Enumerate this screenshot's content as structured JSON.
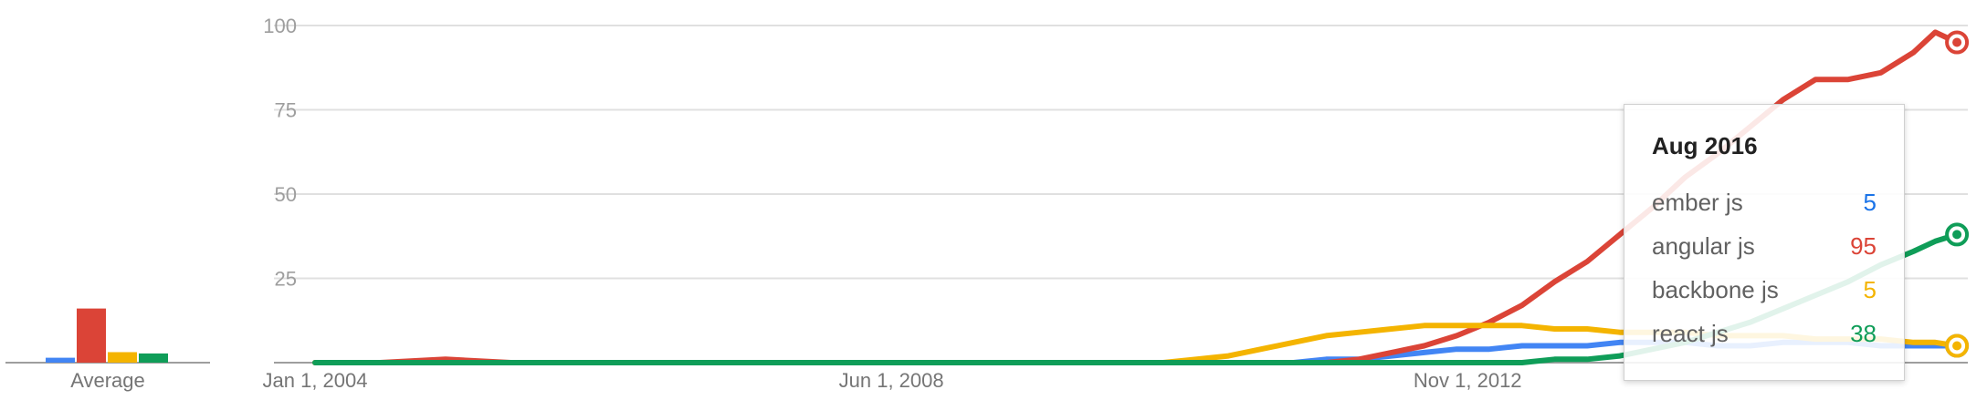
{
  "chart_data": {
    "type": "line",
    "ylim": [
      0,
      100
    ],
    "yticks": [
      100,
      75,
      50,
      25
    ],
    "xlim": [
      "2004-01",
      "2016-09"
    ],
    "xticks": [
      {
        "label": "Jan 1, 2004",
        "date": "2004-01"
      },
      {
        "label": "Jun 1, 2008",
        "date": "2008-06"
      },
      {
        "label": "Nov 1, 2012",
        "date": "2012-11"
      }
    ],
    "grid": true,
    "x": [
      "2004-01",
      "2004-07",
      "2005-01",
      "2005-07",
      "2006-01",
      "2006-07",
      "2007-01",
      "2007-07",
      "2008-01",
      "2008-07",
      "2009-01",
      "2009-07",
      "2010-01",
      "2010-04",
      "2010-07",
      "2010-10",
      "2011-01",
      "2011-04",
      "2011-07",
      "2011-10",
      "2012-01",
      "2012-04",
      "2012-07",
      "2012-10",
      "2013-01",
      "2013-04",
      "2013-07",
      "2013-10",
      "2014-01",
      "2014-04",
      "2014-07",
      "2014-10",
      "2015-01",
      "2015-04",
      "2015-07",
      "2015-10",
      "2016-01",
      "2016-04",
      "2016-06",
      "2016-08"
    ],
    "series": [
      {
        "name": "ember js",
        "color": "#4285f4",
        "values": [
          0,
          0,
          0,
          0,
          0,
          0,
          0,
          0,
          0,
          0,
          0,
          0,
          0,
          0,
          0,
          0,
          0,
          0,
          0,
          1,
          1,
          2,
          3,
          4,
          4,
          5,
          5,
          5,
          6,
          6,
          6,
          5,
          5,
          6,
          6,
          6,
          5,
          5,
          5,
          5
        ]
      },
      {
        "name": "angular js",
        "color": "#db4437",
        "values": [
          0,
          0,
          1,
          0,
          0,
          0,
          0,
          0,
          0,
          0,
          0,
          0,
          0,
          0,
          0,
          0,
          0,
          0,
          0,
          0,
          1,
          3,
          5,
          8,
          12,
          17,
          24,
          30,
          38,
          46,
          55,
          62,
          70,
          78,
          84,
          84,
          86,
          92,
          98,
          95
        ]
      },
      {
        "name": "backbone js",
        "color": "#f4b400",
        "values": [
          0,
          0,
          0,
          0,
          0,
          0,
          0,
          0,
          0,
          0,
          0,
          0,
          0,
          0,
          0,
          1,
          2,
          4,
          6,
          8,
          9,
          10,
          11,
          11,
          11,
          11,
          10,
          10,
          9,
          9,
          9,
          8,
          8,
          8,
          7,
          7,
          7,
          6,
          6,
          5
        ]
      },
      {
        "name": "react js",
        "color": "#0f9d58",
        "values": [
          0,
          0,
          0,
          0,
          0,
          0,
          0,
          0,
          0,
          0,
          0,
          0,
          0,
          0,
          0,
          0,
          0,
          0,
          0,
          0,
          0,
          0,
          0,
          0,
          0,
          0,
          1,
          1,
          2,
          4,
          6,
          9,
          12,
          16,
          20,
          24,
          29,
          33,
          36,
          38
        ]
      }
    ],
    "averages": {
      "label": "Average",
      "values": [
        {
          "name": "ember js",
          "value": 1.5,
          "color": "#4285f4"
        },
        {
          "name": "angular js",
          "value": 16.5,
          "color": "#db4437"
        },
        {
          "name": "backbone js",
          "value": 3.2,
          "color": "#f4b400"
        },
        {
          "name": "react js",
          "value": 2.8,
          "color": "#0f9d58"
        }
      ]
    }
  },
  "tooltip": {
    "title": "Aug 2016",
    "rows": [
      {
        "label": "ember js",
        "value": "5",
        "color": "#1a73e8"
      },
      {
        "label": "angular js",
        "value": "95",
        "color": "#db4437"
      },
      {
        "label": "backbone js",
        "value": "5",
        "color": "#f4b400"
      },
      {
        "label": "react js",
        "value": "38",
        "color": "#0f9d58"
      }
    ]
  }
}
